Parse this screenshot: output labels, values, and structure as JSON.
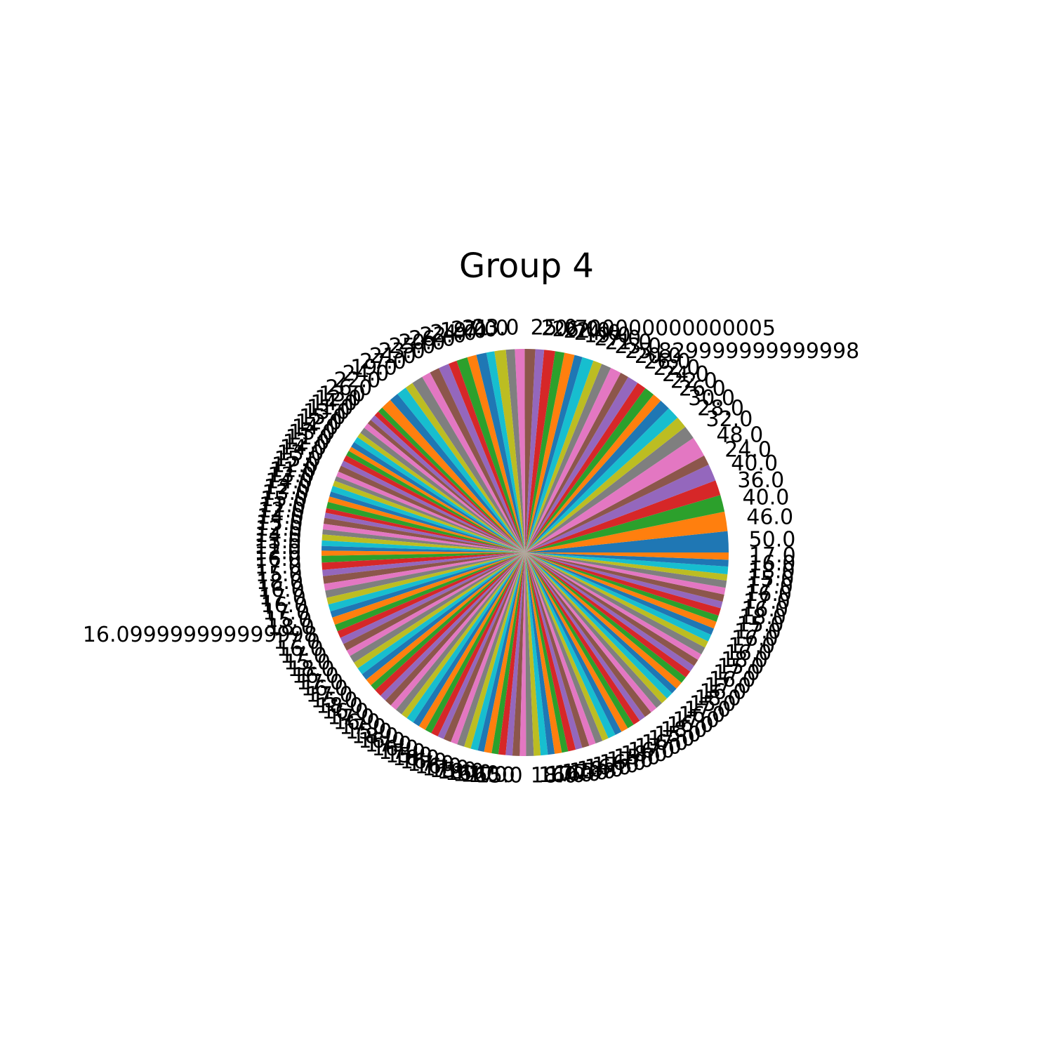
{
  "chart_data": {
    "type": "pie",
    "title": "Group 4",
    "values": [
      50,
      46,
      40,
      36,
      40,
      24,
      48,
      32,
      28,
      30,
      26,
      22,
      24,
      22,
      26,
      20,
      25.83,
      23,
      21,
      27,
      19,
      24,
      22,
      26,
      20.7,
      25,
      23,
      21,
      27,
      19,
      24,
      22,
      26,
      20,
      25,
      23,
      21,
      27,
      19,
      24,
      22,
      26,
      13,
      12,
      14,
      11,
      13,
      15,
      12,
      14,
      13,
      11,
      12,
      14,
      13,
      15,
      12,
      11,
      13,
      14,
      12,
      13,
      15,
      11,
      12,
      14,
      13,
      12,
      14,
      13,
      11,
      12,
      16,
      17,
      15,
      18,
      16,
      17,
      16,
      17,
      15,
      18,
      16.1,
      17,
      16,
      17,
      15,
      18,
      16,
      17,
      16,
      17,
      15,
      18,
      16,
      17,
      16,
      17,
      15,
      18,
      16,
      17,
      16,
      17,
      15,
      18,
      16,
      17,
      16,
      17,
      15,
      18,
      16,
      17,
      16,
      17,
      15,
      18,
      16,
      17,
      16,
      17,
      15,
      18,
      16,
      17,
      16,
      17,
      15,
      18,
      16,
      17,
      16,
      17,
      15,
      18,
      16,
      17,
      16,
      17,
      15,
      18,
      16,
      17,
      16,
      17,
      15,
      18,
      16,
      17,
      16,
      17,
      15,
      18,
      16,
      17,
      16,
      17,
      15,
      18,
      16,
      17
    ],
    "value_labels": [
      "50.0",
      "46.0",
      "40.0",
      "36.0",
      "40.0",
      "24.0",
      "48.0",
      "32.0",
      "28.0",
      "30.0",
      "26.0",
      "22.0",
      "24.0",
      "22.0",
      "26.0",
      "20.0",
      "25.829999999999998",
      "23.0",
      "21.0",
      "27.0",
      "19.0",
      "24.0",
      "22.0",
      "26.0",
      "20.700000000000005",
      "25.0",
      "23.0",
      "21.0",
      "27.0",
      "19.0",
      "24.0",
      "22.0",
      "26.0",
      "20.0",
      "25.0",
      "23.0",
      "21.0",
      "27.0",
      "19.0",
      "24.0",
      "22.0",
      "26.0",
      "13.0",
      "12.0",
      "14.0",
      "11.0",
      "13.0",
      "15.0",
      "12.0",
      "14.0",
      "13.0",
      "11.0",
      "12.0",
      "14.0",
      "13.0",
      "15.0",
      "12.0",
      "11.0",
      "13.0",
      "14.0",
      "12.0",
      "13.0",
      "15.0",
      "11.0",
      "12.0",
      "14.0",
      "13.0",
      "12.0",
      "14.0",
      "13.0",
      "11.0",
      "12.0",
      "16.0",
      "17.0",
      "15.0",
      "18.0",
      "16.0",
      "17.0",
      "16.0",
      "17.0",
      "15.0",
      "18.0",
      "16.099999999999998",
      "17.0",
      "16.0",
      "17.0",
      "15.0",
      "18.0",
      "16.0",
      "17.0",
      "16.0",
      "17.0",
      "15.0",
      "18.0",
      "16.0",
      "17.0",
      "16.0",
      "17.0",
      "15.0",
      "18.0",
      "16.0",
      "17.0",
      "16.0",
      "17.0",
      "15.0",
      "18.0",
      "16.0",
      "17.0",
      "16.0",
      "17.0",
      "15.0",
      "18.0",
      "16.0",
      "17.0",
      "16.0",
      "17.0",
      "15.0",
      "18.0",
      "16.0",
      "17.0",
      "16.0",
      "17.0",
      "15.0",
      "18.0",
      "16.0",
      "17.0",
      "16.0",
      "17.0",
      "15.0",
      "18.0",
      "16.0",
      "17.0",
      "16.0",
      "17.0",
      "15.0",
      "18.0",
      "16.0",
      "17.0",
      "16.0",
      "17.0",
      "15.0",
      "18.0",
      "16.0",
      "17.0",
      "16.0",
      "17.0",
      "15.0",
      "18.0",
      "16.0",
      "17.0",
      "16.0",
      "17.0",
      "15.0",
      "18.0",
      "16.0",
      "17.0",
      "16.0",
      "17.0",
      "15.0",
      "18.0",
      "16.0",
      "17.0"
    ],
    "colors": [
      "#1f77b4",
      "#ff7f0e",
      "#2ca02c",
      "#d62728",
      "#9467bd",
      "#8c564b",
      "#e377c2",
      "#7f7f7f",
      "#bcbd22",
      "#17becf"
    ],
    "start_angle": 0,
    "counterclock": true
  }
}
